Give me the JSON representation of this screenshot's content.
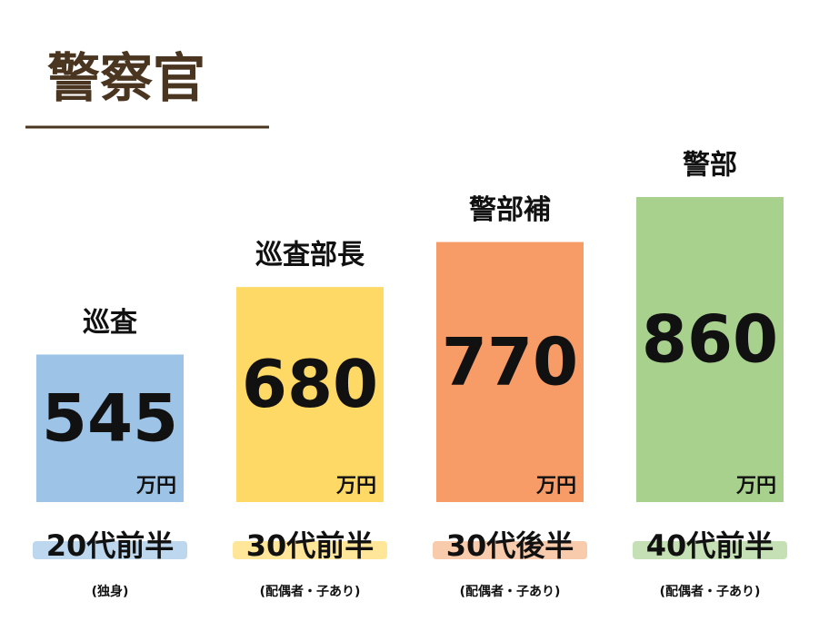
{
  "chart_data": {
    "type": "bar",
    "title": "警察官",
    "categories": [
      "巡査",
      "巡査部長",
      "警部補",
      "警部"
    ],
    "values": [
      545,
      680,
      770,
      860
    ],
    "unit": "万円",
    "colors": [
      "#9dc3e6",
      "#ffd966",
      "#f79b67",
      "#a9d18e"
    ],
    "age_labels": [
      "20代前半",
      "30代前半",
      "30代後半",
      "40代前半"
    ],
    "age_label_colors": [
      "#bdd7ee",
      "#ffe699",
      "#f8cbad",
      "#c5e0b4"
    ],
    "notes": [
      "(独身)",
      "(配偶者・子あり)",
      "(配偶者・子あり)",
      "(配偶者・子あり)"
    ],
    "ylim": [
      250,
      860
    ]
  }
}
